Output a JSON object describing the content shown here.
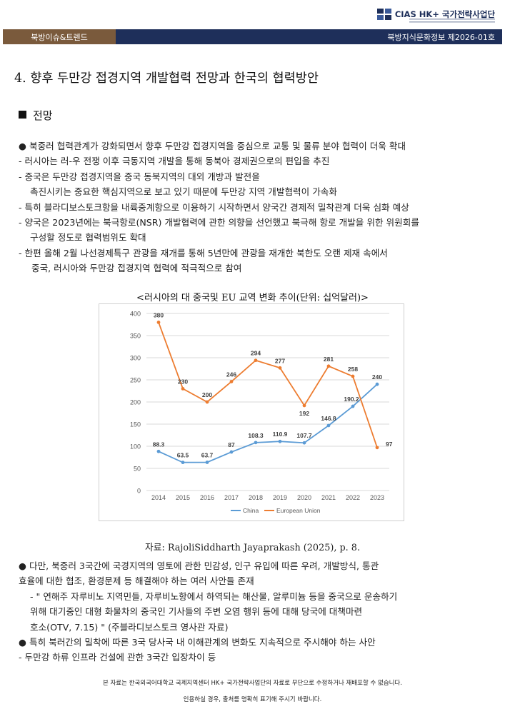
{
  "header": {
    "logo_text": "HK+ 국가전략사업단",
    "logo_brand": "CIAS",
    "section_label": "북방이슈&트렌드",
    "issue_label": "북방지식문화정보 제2026-01호"
  },
  "title": "4. 향후 두만강 접경지역 개발협력 전망과 한국의 협력방안",
  "section_heading": "전망",
  "body_lines": [
    "● 북중러 협력관계가 강화되면서 향후 두만강 접경지역을 중심으로 교통 및 물류 분야 협력이 더욱 확대",
    "- 러시아는 러-우 전쟁 이후 극동지역 개발을 통해 동북아 경제권으로의 편입을 추진",
    "- 중국은 두만강 접경지역을 중국 동북지역의 대외 개방과 발전을",
    "촉진시키는 중요한 핵심지역으로 보고 있기 때문에 두만강 지역 개발협력이 가속화",
    "- 특히 블라디보스토크항을 내륙중계항으로 이용하기 시작하면서 양국간 경제적 밀착관계 더욱 심화 예상",
    "- 양국은 2023년에는 북극항로(NSR) 개발협력에 관한 의향을 선언했고 북극해 항로 개발을 위한 위원회를",
    "구성할 정도로 협력범위도 확대",
    "- 한편 올해 2월 나선경제특구 관광을 재개를 통해 5년만에 관광을 재개한 북한도 오랜 제재 속에서",
    "중국, 러시아와 두만강 접경지역 협력에 적극적으로 참여"
  ],
  "chart_caption": "<러시아의 대 중국및 EU 교역 변화 추이(단위: 십억달러)>",
  "chart_data": {
    "type": "line",
    "x": [
      "2014",
      "2015",
      "2016",
      "2017",
      "2018",
      "2019",
      "2020",
      "2021",
      "2022",
      "2023"
    ],
    "ylim": [
      0,
      400
    ],
    "yticks": [
      0,
      50,
      100,
      150,
      200,
      250,
      300,
      350,
      400
    ],
    "grid": true,
    "legend": "bottom",
    "series": [
      {
        "name": "China",
        "color": "#5b9bd5",
        "values": [
          88.3,
          63.5,
          63.7,
          87,
          108.3,
          110.9,
          107.7,
          146.8,
          190.2,
          240
        ],
        "labels": [
          "88.3",
          "63.5",
          "63.7",
          "87",
          "108.3",
          "110.9",
          "107.7",
          "146.8",
          "190.2",
          "240"
        ]
      },
      {
        "name": "European Union",
        "color": "#ed7d31",
        "values": [
          380,
          230,
          200,
          246,
          294,
          277,
          192,
          281,
          258,
          97
        ],
        "labels": [
          "380",
          "230",
          "200",
          "246",
          "294",
          "277",
          "192",
          "281",
          "258",
          "97"
        ]
      }
    ]
  },
  "source": "자료: RajoliSiddharth Jayaprakash (2025), p. 8.",
  "lower_lines": [
    "● 다만, 북중러 3국간에 국경지역의 영토에 관한 민감성, 인구 유입에 따른 우려, 개발방식, 통관",
    "효율에 대한 협조, 환경문제 등 해결해야 하는 여러 사안들 존재",
    "- \" 연해주 자루비노 지역민들, 자루비노항에서 하역되는 해산물, 알루미늄 등을 중국으로 운송하기",
    "위해 대기중인 대형 화물차의 중국인 기사들의 주변 오염 행위 등에 대해 당국에 대책마련",
    "호소(OTV, 7.15) \" (주블라디보스토크 영사관 자료)",
    "● 특히 북러간의 밀착에 따른 3국 당사국 내 이해관계의 변화도 지속적으로 주시해야 하는 사안",
    "- 두만강 하류 인프라 건설에 관한 3국간 입장차이 등"
  ],
  "footer": {
    "line1": "본 자료는 한국외국어대학교 국제지역센터 HK+ 국가전략사업단의 자료로 무단으로 수정하거나 재배포할 수 없습니다.",
    "line2": "인용하실 경우, 출처를 명확히 표기해 주시기 바랍니다."
  }
}
